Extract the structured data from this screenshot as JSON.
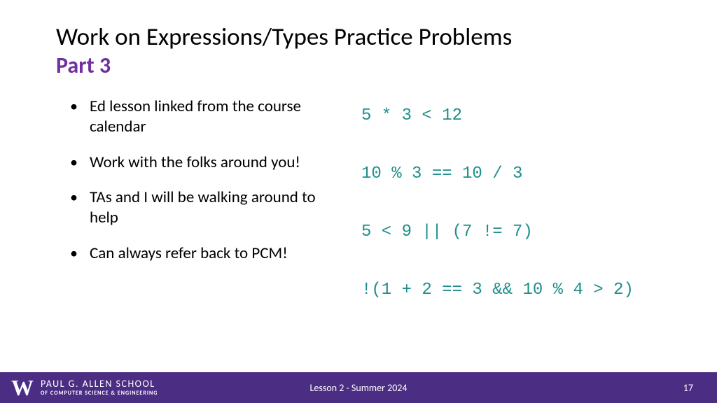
{
  "colors": {
    "purple": "#4b2e83",
    "teal": "#1f8f8b",
    "subtitle_purple": "#7030a0",
    "black": "#000000",
    "white": "#ffffff"
  },
  "title": "Work on Expressions/Types Practice Problems",
  "subtitle": "Part 3",
  "bullets": [
    "Ed lesson linked from the course calendar",
    "Work with the folks around you!",
    "TAs and I will be walking around to help",
    "Can always refer back to PCM!"
  ],
  "code": [
    "5 * 3 < 12",
    "10 % 3 == 10 / 3",
    "5 < 9 || (7 != 7)",
    "!(1 + 2 == 3 && 10 % 4 > 2)"
  ],
  "footer": {
    "school_top": "PAUL G. ALLEN SCHOOL",
    "school_bot": "OF COMPUTER SCIENCE & ENGINEERING",
    "center": "Lesson 2 - Summer 2024",
    "page": "17"
  }
}
